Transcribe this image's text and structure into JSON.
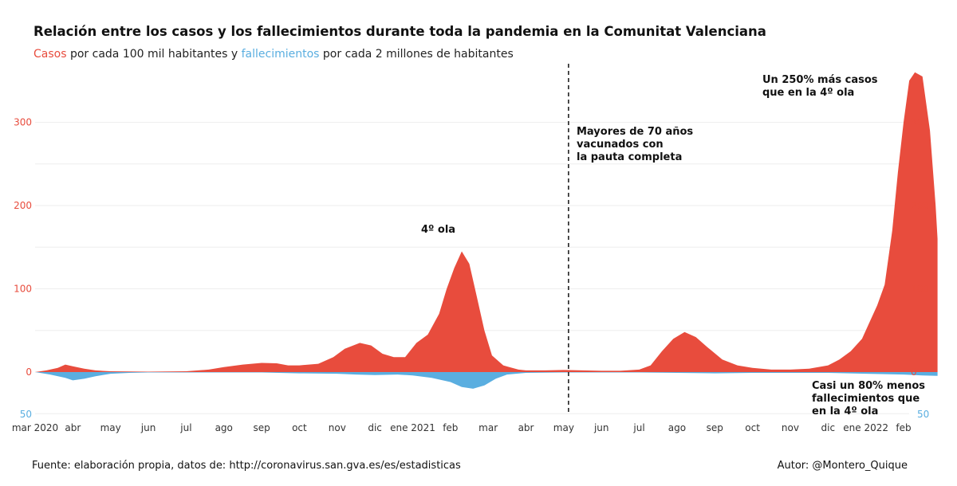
{
  "title": "Relación entre los casos y los fallecimientos durante toda la pandemia en la Comunitat Valenciana",
  "subtitle": {
    "casos": "Casos",
    "mid": " por cada 100 mil habitantes y ",
    "fallecimientos": "fallecimientos",
    "end": " por cada 2 millones de habitantes"
  },
  "footer": {
    "source": "Fuente: elaboración propia, datos de: http://coronavirus.san.gva.es/es/estadisticas",
    "author": "Autor: @Montero_Quique"
  },
  "colors": {
    "cases": "#e84c3d",
    "deaths": "#5aaee0",
    "grid": "#eeeeee"
  },
  "chart_data": {
    "type": "area",
    "x_ticks": [
      "mar 2020",
      "abr",
      "may",
      "jun",
      "jul",
      "ago",
      "sep",
      "oct",
      "nov",
      "dic",
      "ene 2021",
      "feb",
      "mar",
      "abr",
      "may",
      "jun",
      "jul",
      "ago",
      "sep",
      "oct",
      "nov",
      "dic",
      "ene 2022",
      "feb"
    ],
    "y_ticks_cases": [
      "0",
      "100",
      "200",
      "300"
    ],
    "y_tick_deaths": "50",
    "ylim_cases": [
      -50,
      370
    ],
    "grid": true,
    "vaccination_marker_month": 14,
    "series": [
      {
        "name": "Casos",
        "color": "#e84c3d",
        "points": [
          [
            0,
            0
          ],
          [
            0.3,
            2
          ],
          [
            0.6,
            5
          ],
          [
            0.8,
            9
          ],
          [
            1.0,
            7
          ],
          [
            1.3,
            4
          ],
          [
            1.6,
            2
          ],
          [
            2.0,
            1
          ],
          [
            3.0,
            0.5
          ],
          [
            4.0,
            1
          ],
          [
            4.6,
            3
          ],
          [
            5.0,
            6
          ],
          [
            5.5,
            9
          ],
          [
            6.0,
            11
          ],
          [
            6.4,
            10.5
          ],
          [
            6.7,
            8
          ],
          [
            7.0,
            8
          ],
          [
            7.5,
            10
          ],
          [
            7.9,
            18
          ],
          [
            8.2,
            28
          ],
          [
            8.6,
            35
          ],
          [
            8.9,
            32
          ],
          [
            9.2,
            22
          ],
          [
            9.5,
            18
          ],
          [
            9.8,
            18
          ],
          [
            10.1,
            35
          ],
          [
            10.4,
            45
          ],
          [
            10.7,
            70
          ],
          [
            10.9,
            100
          ],
          [
            11.1,
            125
          ],
          [
            11.3,
            145
          ],
          [
            11.5,
            130
          ],
          [
            11.7,
            90
          ],
          [
            11.9,
            50
          ],
          [
            12.1,
            20
          ],
          [
            12.4,
            8
          ],
          [
            12.8,
            3
          ],
          [
            13.0,
            2
          ],
          [
            13.5,
            2
          ],
          [
            14.0,
            2.5
          ],
          [
            14.5,
            2
          ],
          [
            15.0,
            1.5
          ],
          [
            15.5,
            1.5
          ],
          [
            16.0,
            3
          ],
          [
            16.3,
            8
          ],
          [
            16.6,
            25
          ],
          [
            16.9,
            40
          ],
          [
            17.2,
            48
          ],
          [
            17.5,
            42
          ],
          [
            17.8,
            30
          ],
          [
            18.2,
            15
          ],
          [
            18.6,
            8
          ],
          [
            19.0,
            5
          ],
          [
            19.5,
            3
          ],
          [
            20.0,
            3
          ],
          [
            20.5,
            4
          ],
          [
            21.0,
            8
          ],
          [
            21.3,
            15
          ],
          [
            21.6,
            25
          ],
          [
            21.9,
            40
          ],
          [
            22.1,
            60
          ],
          [
            22.3,
            80
          ],
          [
            22.5,
            105
          ],
          [
            22.7,
            170
          ],
          [
            22.85,
            240
          ],
          [
            23.0,
            300
          ],
          [
            23.15,
            350
          ],
          [
            23.3,
            360
          ],
          [
            23.5,
            355
          ],
          [
            23.7,
            290
          ],
          [
            23.85,
            200
          ],
          [
            23.9,
            160
          ]
        ]
      },
      {
        "name": "Fallecimientos",
        "color": "#5aaee0",
        "points": [
          [
            0,
            0
          ],
          [
            0.4,
            3
          ],
          [
            0.8,
            7
          ],
          [
            1.0,
            10
          ],
          [
            1.3,
            8
          ],
          [
            1.6,
            5
          ],
          [
            2.0,
            2
          ],
          [
            2.5,
            1
          ],
          [
            3.0,
            0.5
          ],
          [
            6.0,
            0.5
          ],
          [
            7.0,
            1.5
          ],
          [
            8.0,
            2
          ],
          [
            8.5,
            3
          ],
          [
            9.0,
            3.5
          ],
          [
            9.6,
            3
          ],
          [
            10.0,
            4
          ],
          [
            10.5,
            7
          ],
          [
            11.0,
            12
          ],
          [
            11.3,
            18
          ],
          [
            11.6,
            20
          ],
          [
            11.9,
            16
          ],
          [
            12.2,
            8
          ],
          [
            12.5,
            3
          ],
          [
            13.0,
            1
          ],
          [
            14.0,
            0.5
          ],
          [
            16.0,
            0.5
          ],
          [
            17.0,
            1
          ],
          [
            18.0,
            1.5
          ],
          [
            19.0,
            1
          ],
          [
            20.0,
            1
          ],
          [
            21.0,
            1
          ],
          [
            22.0,
            2
          ],
          [
            23.0,
            3
          ],
          [
            23.5,
            4
          ],
          [
            23.9,
            4.5
          ]
        ]
      }
    ],
    "annotations": [
      {
        "lines": [
          "4º ola"
        ]
      },
      {
        "lines": [
          "Mayores de 70 años",
          "vacunados con",
          "la pauta completa"
        ]
      },
      {
        "lines": [
          "Un 250% más casos",
          "que en la 4º ola"
        ]
      },
      {
        "lines": [
          "Casi un 80% menos",
          "fallecimientos que",
          "en la 4º ola"
        ]
      }
    ]
  }
}
